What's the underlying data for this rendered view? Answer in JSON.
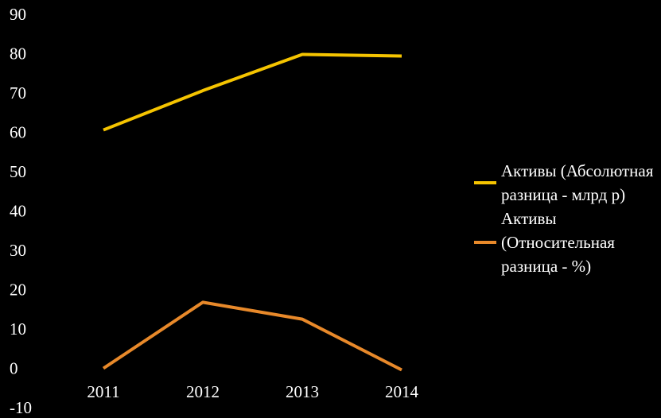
{
  "chart_data": {
    "type": "line",
    "categories": [
      "2011",
      "2012",
      "2013",
      "2014"
    ],
    "series": [
      {
        "name": "Активы (Абсолютная разница - млрд р)",
        "color": "#f5c400",
        "values": [
          61,
          71,
          80.2,
          79.8
        ]
      },
      {
        "name": "Активы (Относительная разница - %)",
        "color": "#e8892a",
        "values": [
          0.4,
          17.2,
          12.9,
          0
        ]
      }
    ],
    "ylim": [
      -10,
      90
    ],
    "yticks": [
      -10,
      0,
      10,
      20,
      30,
      40,
      50,
      60,
      70,
      80,
      90
    ],
    "grid": false,
    "legend": "right"
  }
}
